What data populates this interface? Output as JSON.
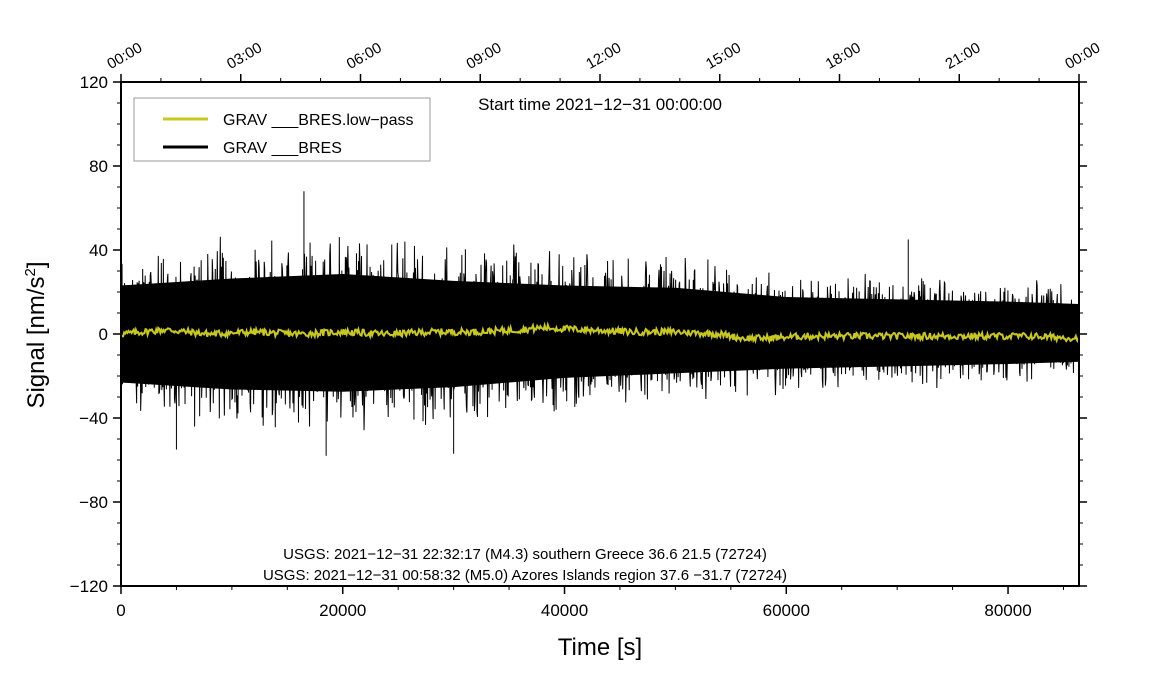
{
  "chart_data": {
    "type": "line",
    "xlabel": "Time [s]",
    "ylabel_main": "Signal [nm/s",
    "ylabel_sup": "2",
    "ylabel_tail": "]",
    "xlim": [
      0,
      86400
    ],
    "ylim": [
      -120,
      120
    ],
    "x_ticks": [
      {
        "value": 0,
        "label": "0"
      },
      {
        "value": 20000,
        "label": "20000"
      },
      {
        "value": 40000,
        "label": "40000"
      },
      {
        "value": 60000,
        "label": "60000"
      },
      {
        "value": 80000,
        "label": "80000"
      }
    ],
    "y_ticks": [
      {
        "value": 120,
        "label": "120"
      },
      {
        "value": 80,
        "label": "80"
      },
      {
        "value": 40,
        "label": "40"
      },
      {
        "value": 0,
        "label": "0"
      },
      {
        "value": -40,
        "label": "−40"
      },
      {
        "value": -80,
        "label": "−80"
      },
      {
        "value": -120,
        "label": "−120"
      }
    ],
    "top_ticks": [
      {
        "value": 0,
        "label": "00:00"
      },
      {
        "value": 10800,
        "label": "03:00"
      },
      {
        "value": 21600,
        "label": "06:00"
      },
      {
        "value": 32400,
        "label": "09:00"
      },
      {
        "value": 43200,
        "label": "12:00"
      },
      {
        "value": 54000,
        "label": "15:00"
      },
      {
        "value": 64800,
        "label": "18:00"
      },
      {
        "value": 75600,
        "label": "21:00"
      },
      {
        "value": 86400,
        "label": "00:00"
      }
    ],
    "start_time_label": "Start time 2021−12−31 00:00:00",
    "legend": {
      "placement": "top-left",
      "entries": [
        {
          "name": "GRAV ___BRES.low−pass",
          "color": "#c8c81e"
        },
        {
          "name": "GRAV ___BRES",
          "color": "#000000"
        }
      ]
    },
    "annotations": [
      "USGS: 2021−12−31 22:32:17 (M4.3) southern Greece 36.6 21.5 (72724)",
      "USGS: 2021−12−31 00:58:32 (M5.0) Azores Islands region 37.6 −31.7 (72724)"
    ],
    "series": [
      {
        "name": "GRAV ___BRES",
        "color": "#000000",
        "envelope": {
          "x": [
            0,
            10000,
            20000,
            30000,
            40000,
            50000,
            60000,
            70000,
            80000,
            86400
          ],
          "upper": [
            42,
            48,
            52,
            46,
            42,
            40,
            32,
            30,
            28,
            26
          ],
          "lower": [
            -42,
            -48,
            -50,
            -46,
            -38,
            -34,
            -30,
            -28,
            -26,
            -24
          ]
        },
        "peaks": [
          {
            "x": 16500,
            "y": 68
          },
          {
            "x": 71000,
            "y": 45
          },
          {
            "x": 18500,
            "y": -58
          },
          {
            "x": 30000,
            "y": -57
          },
          {
            "x": 5000,
            "y": -55
          }
        ]
      },
      {
        "name": "GRAV ___BRES.low−pass",
        "color": "#c8c81e",
        "x": [
          0,
          4000,
          8000,
          12000,
          16000,
          20000,
          24000,
          28000,
          32000,
          36000,
          38000,
          42000,
          46000,
          50000,
          54000,
          56000,
          58000,
          62000,
          66000,
          70000,
          74000,
          78000,
          82000,
          86400
        ],
        "y": [
          0,
          2,
          0,
          1,
          0,
          1,
          0,
          1,
          1,
          2,
          3,
          2,
          1,
          1,
          0,
          -2,
          -2,
          -1,
          -1,
          -1,
          -1,
          -1,
          -1,
          -2
        ]
      }
    ]
  }
}
